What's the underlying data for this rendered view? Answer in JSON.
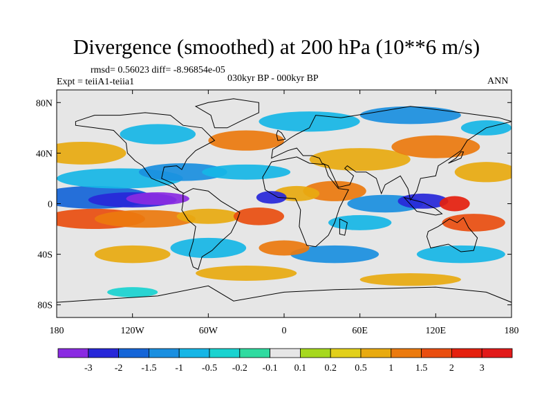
{
  "title": "Divergence (smoothed) at 200 hPa (10**6 m/s)",
  "stats": "rmsd= 0.56023 diff= -8.96854e-05",
  "experiment": "Expt = teiiA1-teiia1",
  "period": "030kyr BP - 000kyr BP",
  "season": "ANN",
  "map": {
    "x_ticks": [
      "180",
      "120W",
      "60W",
      "0",
      "60E",
      "120E",
      "180"
    ],
    "y_ticks": [
      "80N",
      "40N",
      "0",
      "40S",
      "80S"
    ],
    "ocean_color": "#e6e6e6",
    "coastline_color": "#000000"
  },
  "colorbar": {
    "labels": [
      "-3",
      "-2",
      "-1.5",
      "-1",
      "-0.5",
      "-0.2",
      "-0.1",
      "0.1",
      "0.2",
      "0.5",
      "1",
      "1.5",
      "2",
      "3"
    ],
    "colors": [
      "#8a2be2",
      "#2727d9",
      "#1565d8",
      "#1a8fe0",
      "#16b6e6",
      "#19d3d0",
      "#2fdba0",
      "#e6e6e6",
      "#a6d81e",
      "#e2d01a",
      "#e8aa10",
      "#eb7a0e",
      "#e94e10",
      "#e5200e",
      "#e21a1a"
    ]
  }
}
